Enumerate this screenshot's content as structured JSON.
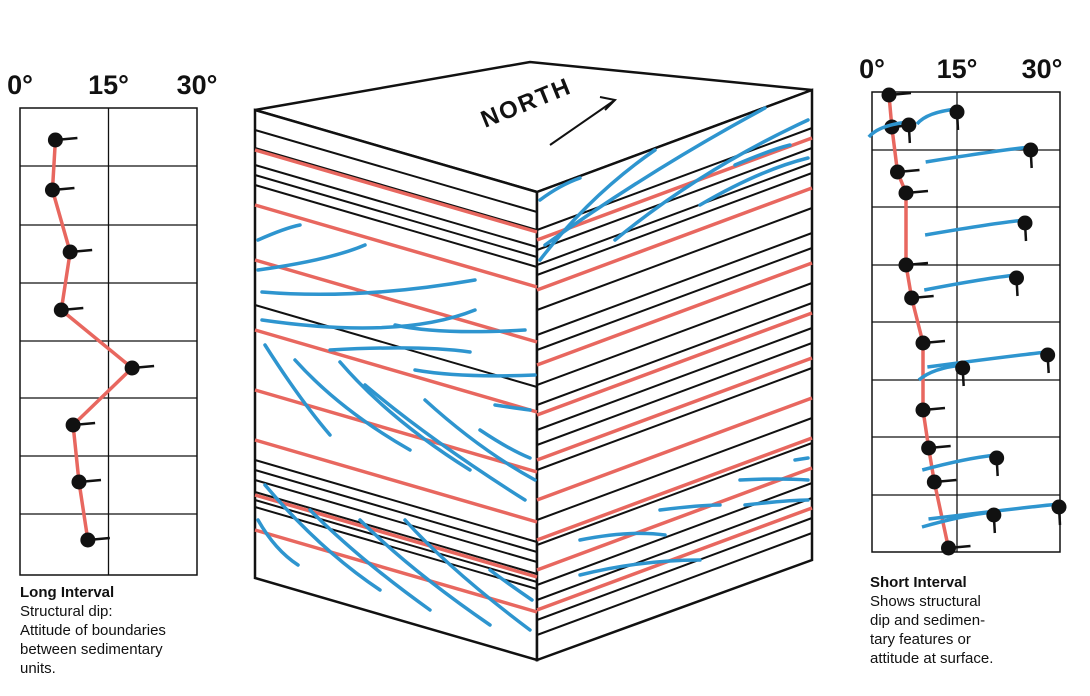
{
  "block": {
    "north": "NORTH"
  },
  "long_log": {
    "ticks": [
      {
        "value": 0,
        "label": "0°"
      },
      {
        "value": 15,
        "label": "15°"
      },
      {
        "value": 30,
        "label": "30°"
      }
    ],
    "structural_dips": [
      6,
      5.5,
      8.5,
      7,
      19,
      9,
      10,
      11.5
    ],
    "caption": {
      "title": "Long Interval",
      "lines": [
        "Structural dip:",
        "Attitude of boundaries",
        "between sedimentary",
        "units."
      ]
    }
  },
  "short_log": {
    "ticks": [
      {
        "value": 0,
        "label": "0°"
      },
      {
        "value": 15,
        "label": "15°"
      },
      {
        "value": 30,
        "label": "30°"
      }
    ],
    "structural_dips": [
      3,
      3.5,
      4.5,
      6,
      6,
      7,
      9,
      9,
      10,
      11,
      13.5
    ],
    "sedimentary_dips": [
      15,
      6.5,
      28,
      27,
      25.5,
      31,
      16,
      22,
      33,
      21.5
    ],
    "caption": {
      "title": "Short Interval",
      "lines": [
        "Shows structural",
        "dip and sedimen-",
        "tary features or",
        "attitude at surface."
      ]
    }
  }
}
